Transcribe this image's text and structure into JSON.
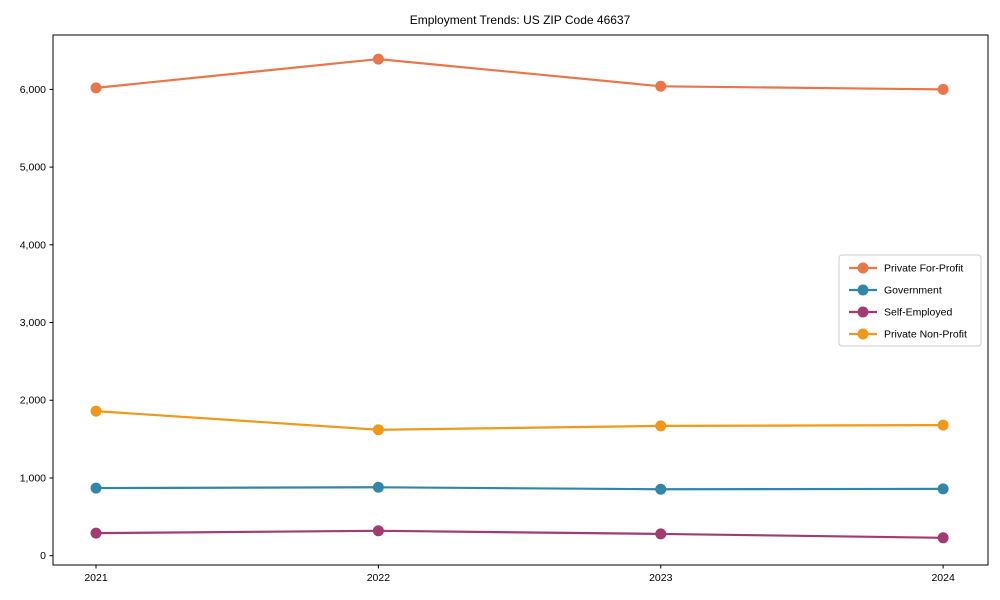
{
  "chart_data": {
    "type": "line",
    "title": "Employment Trends: US ZIP Code 46637",
    "categories": [
      "2021",
      "2022",
      "2023",
      "2024"
    ],
    "series": [
      {
        "name": "Private For-Profit",
        "color": "#E8764B",
        "values": [
          6020,
          6390,
          6040,
          6000
        ]
      },
      {
        "name": "Government",
        "color": "#3287A9",
        "values": [
          870,
          880,
          855,
          860
        ]
      },
      {
        "name": "Self-Employed",
        "color": "#A23B72",
        "values": [
          290,
          320,
          280,
          230
        ]
      },
      {
        "name": "Private Non-Profit",
        "color": "#F0981B",
        "values": [
          1860,
          1620,
          1670,
          1680
        ]
      }
    ],
    "xlabel": "",
    "ylabel": "",
    "y_ticks": [
      0,
      1000,
      2000,
      3000,
      4000,
      5000,
      6000
    ],
    "y_tick_labels": [
      "0",
      "1,000",
      "2,000",
      "3,000",
      "4,000",
      "5,000",
      "6,000"
    ],
    "ylim": [
      -120,
      6700
    ],
    "grid": false,
    "legend_position": "center-right",
    "axis_color": "#000000",
    "legend_border_color": "#cccccc",
    "background_color": "#ffffff"
  }
}
